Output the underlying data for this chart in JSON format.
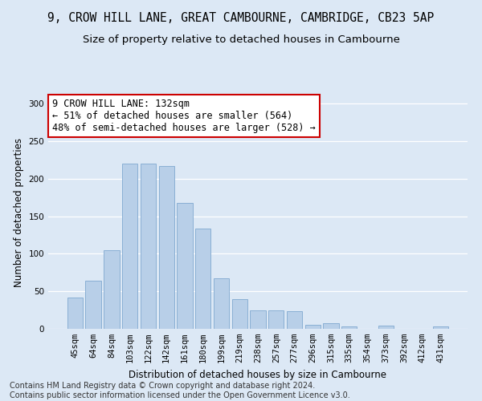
{
  "title_line1": "9, CROW HILL LANE, GREAT CAMBOURNE, CAMBRIDGE, CB23 5AP",
  "title_line2": "Size of property relative to detached houses in Cambourne",
  "xlabel": "Distribution of detached houses by size in Cambourne",
  "ylabel": "Number of detached properties",
  "categories": [
    "45sqm",
    "64sqm",
    "84sqm",
    "103sqm",
    "122sqm",
    "142sqm",
    "161sqm",
    "180sqm",
    "199sqm",
    "219sqm",
    "238sqm",
    "257sqm",
    "277sqm",
    "296sqm",
    "315sqm",
    "335sqm",
    "354sqm",
    "373sqm",
    "392sqm",
    "412sqm",
    "431sqm"
  ],
  "values": [
    42,
    64,
    105,
    220,
    220,
    217,
    168,
    134,
    67,
    40,
    25,
    25,
    23,
    5,
    7,
    3,
    0,
    4,
    0,
    0,
    3
  ],
  "bar_color": "#b8cfe8",
  "bar_edge_color": "#8aafd4",
  "annotation_text": "9 CROW HILL LANE: 132sqm\n← 51% of detached houses are smaller (564)\n48% of semi-detached houses are larger (528) →",
  "annotation_box_color": "white",
  "annotation_box_edge_color": "#cc0000",
  "footer_line1": "Contains HM Land Registry data © Crown copyright and database right 2024.",
  "footer_line2": "Contains public sector information licensed under the Open Government Licence v3.0.",
  "ylim": [
    0,
    310
  ],
  "yticks": [
    0,
    50,
    100,
    150,
    200,
    250,
    300
  ],
  "background_color": "#dce8f5",
  "grid_color": "white",
  "title_fontsize": 10.5,
  "subtitle_fontsize": 9.5,
  "axis_label_fontsize": 8.5,
  "tick_fontsize": 7.5,
  "annotation_fontsize": 8.5,
  "footer_fontsize": 7
}
